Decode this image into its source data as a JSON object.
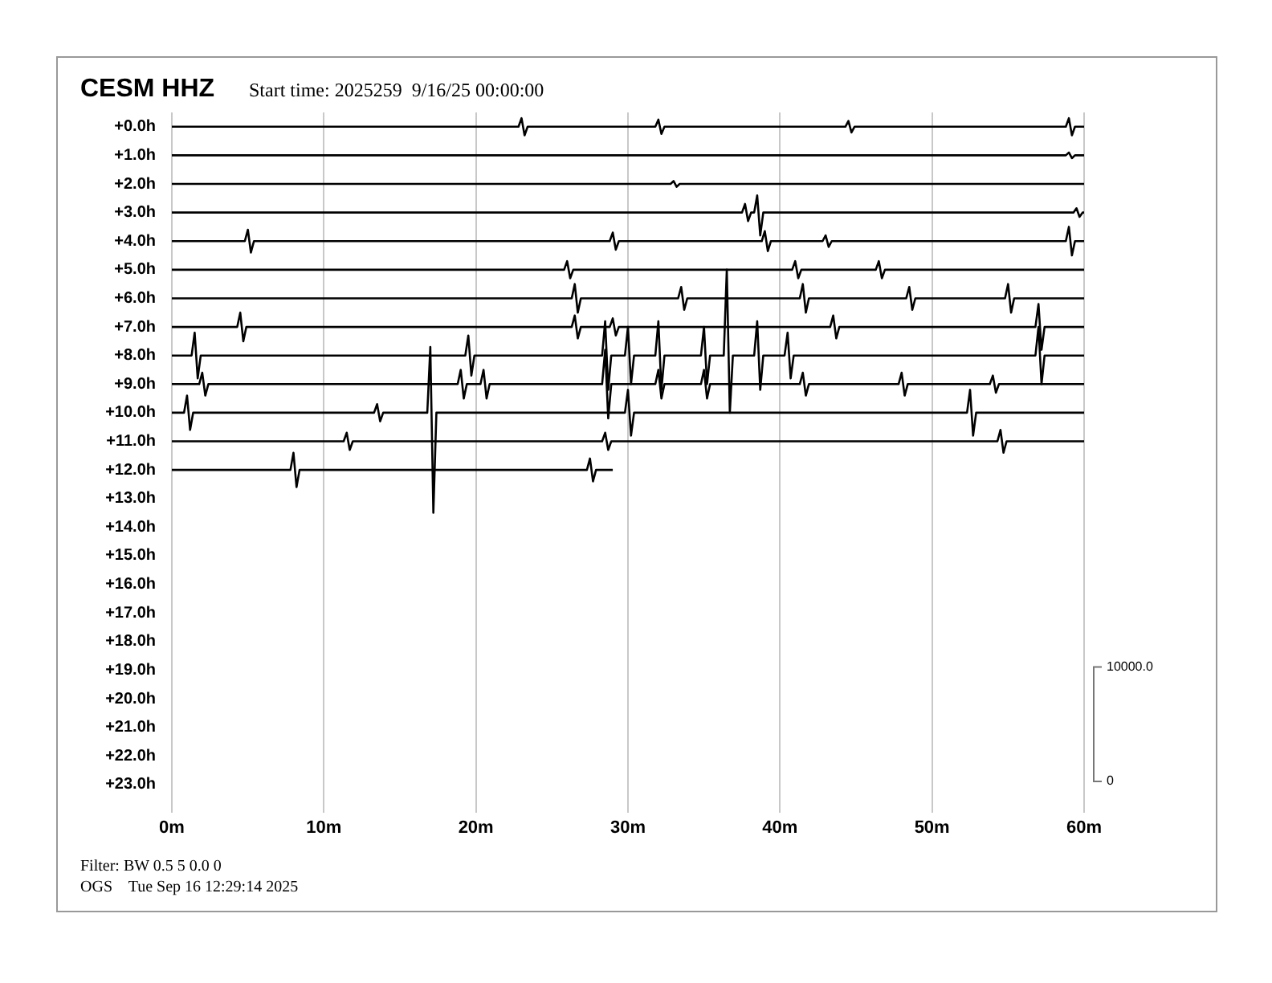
{
  "chart_data": {
    "type": "line",
    "title": "CESM HHZ",
    "subtitle": "Start time: 2025259  9/16/25 00:00:00",
    "annotations": [
      "Filter: BW 0.5 5 0.0 0",
      "OGS    Tue Sep 16 12:29:14 2025"
    ],
    "xlim": [
      0,
      60
    ],
    "xticks": [
      {
        "value": 0,
        "label": "0m"
      },
      {
        "value": 10,
        "label": "10m"
      },
      {
        "value": 20,
        "label": "20m"
      },
      {
        "value": 30,
        "label": "30m"
      },
      {
        "value": 40,
        "label": "40m"
      },
      {
        "value": 50,
        "label": "50m"
      },
      {
        "value": 60,
        "label": "60m"
      }
    ],
    "ylim": [
      23.65,
      -0.5
    ],
    "yticks": [
      {
        "value": 0,
        "label": "+0.0h"
      },
      {
        "value": 1,
        "label": "+1.0h"
      },
      {
        "value": 2,
        "label": "+2.0h"
      },
      {
        "value": 3,
        "label": "+3.0h"
      },
      {
        "value": 4,
        "label": "+4.0h"
      },
      {
        "value": 5,
        "label": "+5.0h"
      },
      {
        "value": 6,
        "label": "+6.0h"
      },
      {
        "value": 7,
        "label": "+7.0h"
      },
      {
        "value": 8,
        "label": "+8.0h"
      },
      {
        "value": 9,
        "label": "+9.0h"
      },
      {
        "value": 10,
        "label": "+10.0h"
      },
      {
        "value": 11,
        "label": "+11.0h"
      },
      {
        "value": 12,
        "label": "+12.0h"
      },
      {
        "value": 13,
        "label": "+13.0h"
      },
      {
        "value": 14,
        "label": "+14.0h"
      },
      {
        "value": 15,
        "label": "+15.0h"
      },
      {
        "value": 16,
        "label": "+16.0h"
      },
      {
        "value": 17,
        "label": "+17.0h"
      },
      {
        "value": 18,
        "label": "+18.0h"
      },
      {
        "value": 19,
        "label": "+19.0h"
      },
      {
        "value": 20,
        "label": "+20.0h"
      },
      {
        "value": 21,
        "label": "+21.0h"
      },
      {
        "value": 22,
        "label": "+22.0h"
      },
      {
        "value": 23,
        "label": "+23.0h"
      }
    ],
    "y2lim": [
      -1900,
      58500
    ],
    "y2ticks": [
      {
        "value": 0,
        "label": "0"
      },
      {
        "value": 10000,
        "label": "10000.0"
      }
    ],
    "grid": "x",
    "legend": false,
    "marker": "none",
    "series": [
      {
        "color": "#000000",
        "x": [
          0,
          22.8,
          23,
          23.2,
          23.4,
          31.8,
          32,
          32.2,
          32.4,
          44.3,
          44.5,
          44.7,
          44.9,
          58.8,
          59,
          59.2,
          59.4,
          60
        ],
        "values": [
          0,
          0,
          -0.3,
          0.3,
          0,
          0,
          -0.25,
          0.25,
          0,
          0,
          -0.2,
          0.2,
          0,
          0,
          -0.3,
          0.3,
          0,
          0
        ]
      },
      {
        "color": "#000000",
        "x": [
          0,
          58.8,
          59,
          59.2,
          59.4,
          60
        ],
        "values": [
          1,
          1,
          0.9,
          1.1,
          1,
          1
        ]
      },
      {
        "color": "#000000",
        "x": [
          0,
          32.8,
          33,
          33.2,
          33.4,
          60
        ],
        "values": [
          2,
          2,
          1.9,
          2.1,
          2,
          2
        ]
      },
      {
        "color": "#000000",
        "x": [
          0,
          37.5,
          37.7,
          37.9,
          38.1,
          38.3,
          38.5,
          38.7,
          38.9,
          59.3,
          59.5,
          59.7,
          59.9,
          60
        ],
        "values": [
          3,
          3,
          2.7,
          3.3,
          3,
          3,
          2.4,
          3.8,
          3,
          3,
          2.85,
          3.15,
          3,
          3
        ]
      },
      {
        "color": "#000000",
        "x": [
          0,
          4.8,
          5,
          5.2,
          5.4,
          28.8,
          29,
          29.2,
          29.4,
          38.8,
          39,
          39.2,
          39.4,
          42.8,
          43,
          43.2,
          43.4,
          58.8,
          59,
          59.2,
          59.4,
          60
        ],
        "values": [
          4,
          4,
          3.6,
          4.4,
          4,
          4,
          3.7,
          4.3,
          4,
          4,
          3.65,
          4.35,
          4,
          4,
          3.8,
          4.2,
          4,
          4,
          3.5,
          4.5,
          4,
          4
        ]
      },
      {
        "color": "#000000",
        "x": [
          0,
          25.8,
          26,
          26.2,
          26.4,
          40.8,
          41,
          41.2,
          41.4,
          46.3,
          46.5,
          46.7,
          46.9,
          60
        ],
        "values": [
          5,
          5,
          4.7,
          5.3,
          5,
          5,
          4.7,
          5.3,
          5,
          5,
          4.7,
          5.3,
          5,
          5
        ]
      },
      {
        "color": "#000000",
        "x": [
          0,
          26.3,
          26.5,
          26.7,
          26.9,
          33.3,
          33.5,
          33.7,
          33.9,
          41.3,
          41.5,
          41.7,
          41.9,
          48.3,
          48.5,
          48.7,
          48.9,
          54.8,
          55,
          55.2,
          55.4,
          60
        ],
        "values": [
          6,
          6,
          5.5,
          6.5,
          6,
          6,
          5.6,
          6.4,
          6,
          6,
          5.5,
          6.5,
          6,
          6,
          5.6,
          6.4,
          6,
          6,
          5.5,
          6.5,
          6,
          6
        ]
      },
      {
        "color": "#000000",
        "x": [
          0,
          4.3,
          4.5,
          4.7,
          4.9,
          26.3,
          26.5,
          26.7,
          26.9,
          28.8,
          29,
          29.2,
          29.4,
          43.3,
          43.5,
          43.7,
          43.9,
          56.8,
          57,
          57.2,
          57.4,
          60
        ],
        "values": [
          7,
          7,
          6.5,
          7.5,
          7,
          7,
          6.6,
          7.4,
          7,
          7,
          6.7,
          7.3,
          7,
          7,
          6.6,
          7.4,
          7,
          7,
          6.2,
          7.8,
          7,
          7
        ]
      },
      {
        "color": "#000000",
        "x": [
          0,
          1.3,
          1.5,
          1.7,
          1.9,
          19.3,
          19.5,
          19.7,
          19.9,
          28.3,
          28.5,
          28.7,
          28.9,
          29.8,
          30,
          30.2,
          30.4,
          31.8,
          32,
          32.2,
          32.4,
          34.8,
          35,
          35.2,
          35.4,
          36.3,
          36.5,
          36.7,
          36.9,
          38.3,
          38.5,
          38.7,
          38.9,
          40.3,
          40.5,
          40.7,
          40.9,
          56.8,
          57,
          57.2,
          57.4,
          60
        ],
        "values": [
          8,
          8,
          7.2,
          8.8,
          8,
          8,
          7.3,
          8.7,
          8,
          8,
          6.8,
          9.2,
          8,
          8,
          7,
          9,
          8,
          8,
          6.8,
          9.2,
          8,
          8,
          7,
          9,
          8,
          8,
          5,
          10,
          8,
          8,
          6.8,
          9.2,
          8,
          8,
          7.2,
          8.8,
          8,
          8,
          7,
          9,
          8,
          8
        ]
      },
      {
        "color": "#000000",
        "x": [
          0,
          1.8,
          2,
          2.2,
          2.4,
          18.8,
          19,
          19.2,
          19.4,
          20.3,
          20.5,
          20.7,
          20.9,
          28.3,
          28.5,
          28.7,
          28.9,
          31.8,
          32,
          32.2,
          32.4,
          34.8,
          35,
          35.2,
          35.4,
          41.3,
          41.5,
          41.7,
          41.9,
          47.8,
          48,
          48.2,
          48.4,
          53.8,
          54,
          54.2,
          54.4,
          60
        ],
        "values": [
          9,
          9,
          8.6,
          9.4,
          9,
          9,
          8.5,
          9.5,
          9,
          9,
          8.5,
          9.5,
          9,
          9,
          7.8,
          10.2,
          9,
          9,
          8.5,
          9.5,
          9,
          9,
          8.5,
          9.5,
          9,
          9,
          8.6,
          9.4,
          9,
          9,
          8.6,
          9.4,
          9,
          9,
          8.7,
          9.3,
          9,
          9
        ]
      },
      {
        "color": "#000000",
        "x": [
          0,
          0.8,
          1,
          1.2,
          1.4,
          13.3,
          13.5,
          13.7,
          13.9,
          16.8,
          17,
          17.2,
          17.4,
          29.8,
          30,
          30.2,
          30.4,
          52.3,
          52.5,
          52.7,
          52.9,
          60
        ],
        "values": [
          10,
          10,
          9.4,
          10.6,
          10,
          10,
          9.7,
          10.3,
          10,
          10,
          7.7,
          13.5,
          10,
          10,
          9.2,
          10.8,
          10,
          10,
          9.2,
          10.8,
          10,
          10
        ]
      },
      {
        "color": "#000000",
        "x": [
          0,
          11.3,
          11.5,
          11.7,
          11.9,
          28.3,
          28.5,
          28.7,
          28.9,
          54.3,
          54.5,
          54.7,
          54.9,
          60
        ],
        "values": [
          11,
          11,
          10.7,
          11.3,
          11,
          11,
          10.7,
          11.3,
          11,
          11,
          10.6,
          11.4,
          11,
          11
        ]
      },
      {
        "color": "#000000",
        "x": [
          0,
          7.8,
          8,
          8.2,
          8.4,
          27.3,
          27.5,
          27.7,
          27.9,
          29
        ],
        "values": [
          12,
          12,
          11.4,
          12.6,
          12,
          12,
          11.6,
          12.4,
          12,
          12
        ]
      }
    ]
  }
}
